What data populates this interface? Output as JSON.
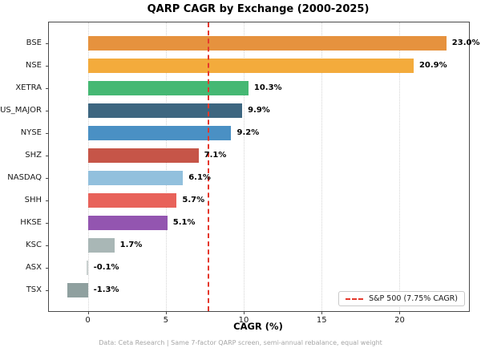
{
  "title": "QARP CAGR by Exchange (2000-2025)",
  "xlabel": "CAGR (%)",
  "footer": "Data: Ceta Research | Same 7-factor QARP screen, semi-annual rebalance, equal weight",
  "legend": {
    "label": "S&P 500 (7.75% CAGR)",
    "line_color": "#e5382c",
    "position": "lower right"
  },
  "chart_data": {
    "type": "bar",
    "orientation": "horizontal",
    "title": "QARP CAGR by Exchange (2000-2025)",
    "categories": [
      "BSE",
      "NSE",
      "XETRA",
      "US_MAJOR",
      "NYSE",
      "SHZ",
      "NASDAQ",
      "SHH",
      "HKSE",
      "KSC",
      "ASX",
      "TSX"
    ],
    "values": [
      23.0,
      20.9,
      10.3,
      9.9,
      9.2,
      7.1,
      6.1,
      5.7,
      5.1,
      1.7,
      -0.1,
      -1.3
    ],
    "value_label_suffix": "%",
    "bar_colors": [
      "#e6923e",
      "#f3ab3c",
      "#45b873",
      "#3d6680",
      "#4a90c4",
      "#c65548",
      "#92c0dd",
      "#e8625a",
      "#9355b0",
      "#a9b7b6",
      "#c9d0cf",
      "#8fa09f"
    ],
    "xlabel": "CAGR (%)",
    "xticks": [
      0,
      5,
      10,
      15,
      20
    ],
    "xlim": [
      -2.5,
      24.45
    ],
    "grid": "vertical-dotted",
    "benchmark": {
      "value": 7.75,
      "label": "S&P 500 (7.75% CAGR)",
      "color": "#e5382c",
      "style": "dashed"
    }
  }
}
